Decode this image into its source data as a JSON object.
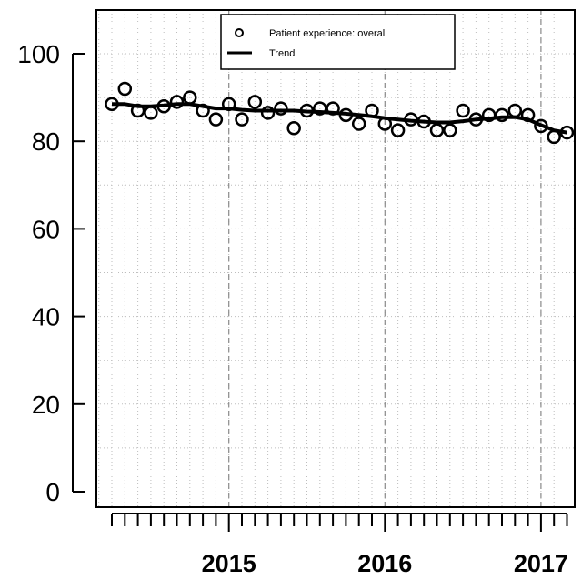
{
  "chart_data": {
    "type": "line",
    "title": "",
    "xlabel": "",
    "ylabel": "",
    "ylim": [
      0,
      105
    ],
    "yticks": [
      0,
      20,
      40,
      60,
      80,
      100
    ],
    "ytick_labels": [
      "0",
      "20",
      "40",
      "60",
      "80",
      "100"
    ],
    "year_labels": [
      "2015",
      "2016",
      "2017"
    ],
    "grid": true,
    "legend_position": "top-right",
    "legend": {
      "series_label": "Patient experience: overall",
      "trend_label": "Trend"
    },
    "x_start": "2014-04",
    "x_end": "2017-03",
    "months": [
      "2014-04",
      "2014-05",
      "2014-06",
      "2014-07",
      "2014-08",
      "2014-09",
      "2014-10",
      "2014-11",
      "2014-12",
      "2015-01",
      "2015-02",
      "2015-03",
      "2015-04",
      "2015-05",
      "2015-06",
      "2015-07",
      "2015-08",
      "2015-09",
      "2015-10",
      "2015-11",
      "2015-12",
      "2016-01",
      "2016-02",
      "2016-03",
      "2016-04",
      "2016-05",
      "2016-06",
      "2016-07",
      "2016-08",
      "2016-09",
      "2016-10",
      "2016-11",
      "2016-12",
      "2017-01",
      "2017-02",
      "2017-03"
    ],
    "series": [
      {
        "name": "Patient experience: overall",
        "values": [
          88.5,
          92,
          87,
          86.5,
          88,
          89,
          90,
          87,
          85,
          88.5,
          85,
          89,
          86.5,
          87.5,
          83,
          87,
          87.5,
          87.5,
          86,
          84,
          87,
          84,
          82.5,
          85,
          84.5,
          82.5,
          82.5,
          87,
          85,
          86,
          86,
          87,
          86,
          83.5,
          81,
          82
        ]
      },
      {
        "name": "Trend",
        "values": [
          88.5,
          88.5,
          88,
          88,
          88.2,
          88.5,
          88.5,
          88,
          87.5,
          87.5,
          87.2,
          87,
          87,
          87,
          87,
          86.8,
          86.7,
          86.5,
          86.3,
          86,
          85.7,
          85.3,
          85,
          84.7,
          84.5,
          84.3,
          84.3,
          84.6,
          85,
          85.2,
          85.5,
          85.5,
          85,
          83.7,
          82.5,
          82
        ]
      }
    ],
    "colors": {
      "points": "#000000",
      "trend": "#000000",
      "grid": "#bdbdbd",
      "year_lines": "#8a8a8a"
    }
  }
}
